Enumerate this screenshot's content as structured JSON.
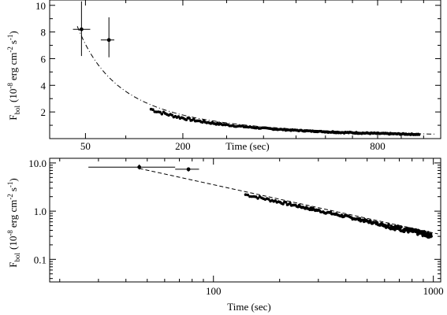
{
  "chart_data": [
    {
      "type": "scatter",
      "xlabel": "Time (sec)",
      "ylabel": "F_bol (10^-8 erg cm^-2 s^-1)",
      "ylabel_main": "F",
      "ylabel_sub": "bol",
      "ylabel_rest": "(10",
      "ylabel_exp": "-8",
      "ylabel_unit": "erg cm",
      "ylabel_unit_exp": "-2",
      "ylabel_unit2": "s",
      "ylabel_unit2_exp": "-1",
      "ylabel_close": ")",
      "x_scale": "sqrt",
      "y_scale": "linear",
      "xlim": [
        20,
        1080
      ],
      "ylim": [
        0,
        10.4
      ],
      "x_ticks": [
        50,
        200,
        800
      ],
      "x_minor_ticks": [
        100,
        300,
        400,
        500,
        600,
        700,
        900,
        1000
      ],
      "x_tick_labels": [
        "50",
        "200",
        "800"
      ],
      "y_ticks": [
        2,
        4,
        6,
        8,
        10
      ],
      "y_minor_ticks": [
        1,
        3,
        5,
        7,
        9
      ],
      "y_tick_labels": [
        "2",
        "4",
        "6",
        "8",
        "10"
      ],
      "points_with_errors": [
        {
          "x": 46,
          "y": 8.2,
          "xerr": [
            38,
            55
          ],
          "yerr": [
            6.2,
            10.3
          ]
        },
        {
          "x": 77,
          "y": 7.4,
          "xerr": [
            67,
            84
          ],
          "yerr": [
            6.1,
            9.1
          ]
        }
      ],
      "model": {
        "style": "dash-dot",
        "law": "power",
        "amplitude": 354,
        "index": -1.0,
        "x_range": [
          42,
          1050
        ]
      },
      "data_envelope": {
        "x_start": 140,
        "x_end": 980,
        "scale": 309,
        "index": -1.0,
        "ripple": 0.06
      }
    },
    {
      "type": "scatter",
      "xlabel": "Time (sec)",
      "ylabel": "F_bol (10^-8 erg cm^-2 s^-1)",
      "x_scale": "log",
      "y_scale": "log",
      "xlim": [
        18,
        1080
      ],
      "ylim": [
        0.034,
        12.5
      ],
      "x_ticks": [
        100,
        1000
      ],
      "x_tick_labels": [
        "100",
        "1000"
      ],
      "y_ticks": [
        0.1,
        1.0,
        10.0
      ],
      "y_tick_labels": [
        "0.1",
        "1.0",
        "10.0"
      ],
      "points_with_errors": [
        {
          "x": 46,
          "y": 8.2,
          "xerr": [
            27,
            67
          ],
          "yerr": [
            7.3,
            9.3
          ]
        },
        {
          "x": 77,
          "y": 7.4,
          "xerr": [
            67,
            86
          ],
          "yerr": [
            6.6,
            8.1
          ]
        }
      ],
      "model": {
        "style": "dashed",
        "law": "power",
        "amplitude": 354,
        "index": -1.0,
        "x_range": [
          46,
          1050
        ]
      },
      "data_envelope": {
        "x_start": 140,
        "x_end": 980,
        "scale": 309,
        "index": -1.0,
        "ripple": 0.06
      }
    }
  ]
}
